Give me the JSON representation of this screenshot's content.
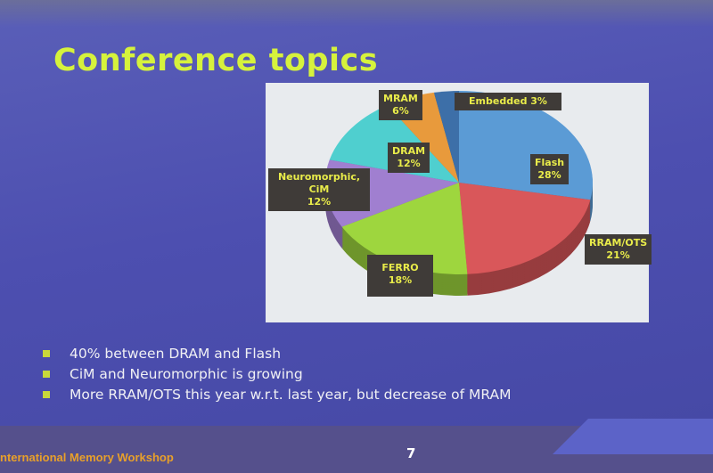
{
  "slide": {
    "title": "Conference topics",
    "bullets": [
      "40% between DRAM and Flash",
      "CiM and Neuromorphic is growing",
      "More RRAM/OTS this year w.r.t. last year, but decrease of MRAM"
    ],
    "footer_brand": "nternational Memory Workshop",
    "page_number": "7"
  },
  "chart_data": {
    "type": "pie",
    "style": "3d",
    "legend": "none",
    "slices": [
      {
        "label": "Flash",
        "value": 28,
        "text": "Flash\n28%",
        "color": "#5b9bd5"
      },
      {
        "label": "RRAM/OTS",
        "value": 21,
        "text": "RRAM/OTS\n21%",
        "color": "#d9575a"
      },
      {
        "label": "FERRO",
        "value": 18,
        "text": "FERRO\n18%",
        "color": "#9ed63e"
      },
      {
        "label": "Neuromorphic, CiM",
        "value": 12,
        "text": "Neuromorphic,\nCiM\n12%",
        "color": "#a07fd0"
      },
      {
        "label": "DRAM",
        "value": 12,
        "text": "DRAM\n12%",
        "color": "#4fcfcf"
      },
      {
        "label": "MRAM",
        "value": 6,
        "text": "MRAM\n6%",
        "color": "#e89a3c"
      },
      {
        "label": "Embedded",
        "value": 3,
        "text": "Embedded 3%",
        "color": "#3d6fa8"
      }
    ]
  }
}
